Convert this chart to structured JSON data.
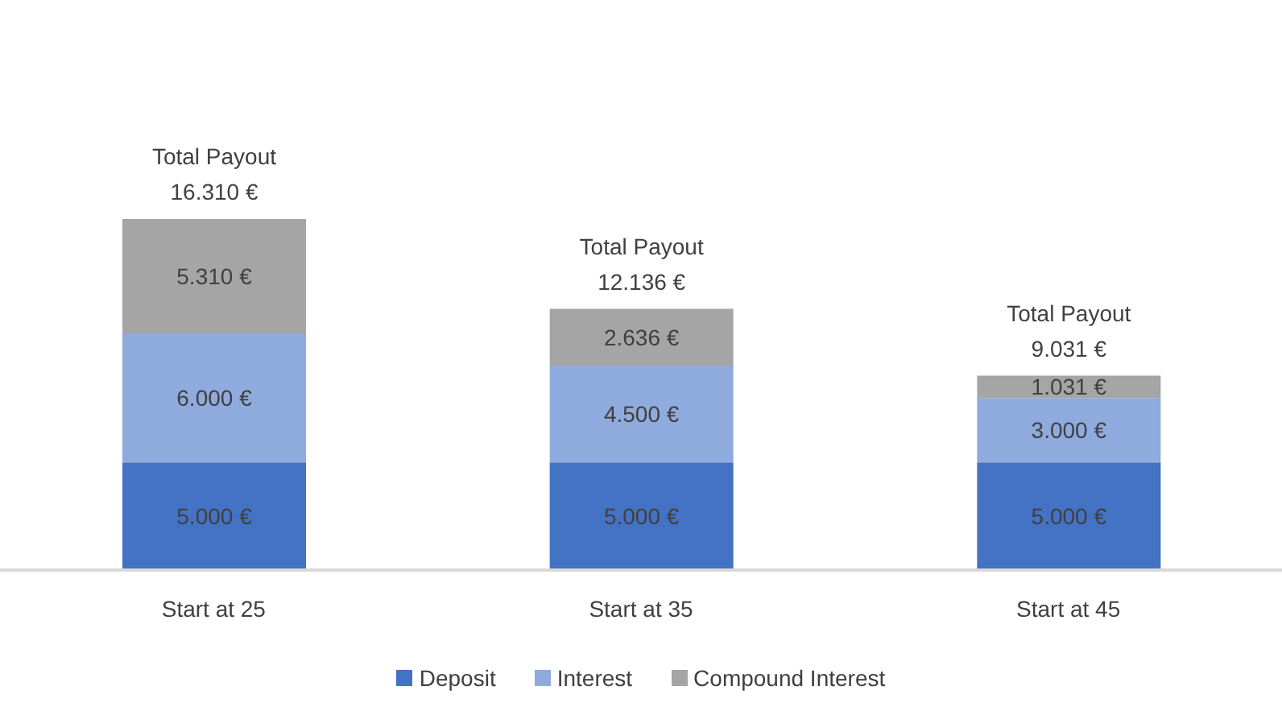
{
  "chart_data": {
    "type": "bar",
    "stacked": true,
    "categories": [
      "Start at 25",
      "Start at 35",
      "Start at 45"
    ],
    "series": [
      {
        "name": "Deposit",
        "color": "#4472c4",
        "values": [
          5000,
          5000,
          5000
        ],
        "value_labels": [
          "5.000 €",
          "5.000 €",
          "5.000 €"
        ]
      },
      {
        "name": "Interest",
        "color": "#8faadc",
        "values": [
          6000,
          4500,
          3000
        ],
        "value_labels": [
          "6.000 €",
          "4.500 €",
          "3.000 €"
        ]
      },
      {
        "name": "Compound Interest",
        "color": "#a5a5a5",
        "values": [
          5310,
          2636,
          1031
        ],
        "value_labels": [
          "5.310 €",
          "2.636 €",
          "1.031 €"
        ]
      }
    ],
    "totals": [
      "Total Payout\n16.310 €",
      "Total Payout\n12.136 €",
      "Total Payout\n9.031 €"
    ],
    "legend": "bottom"
  }
}
